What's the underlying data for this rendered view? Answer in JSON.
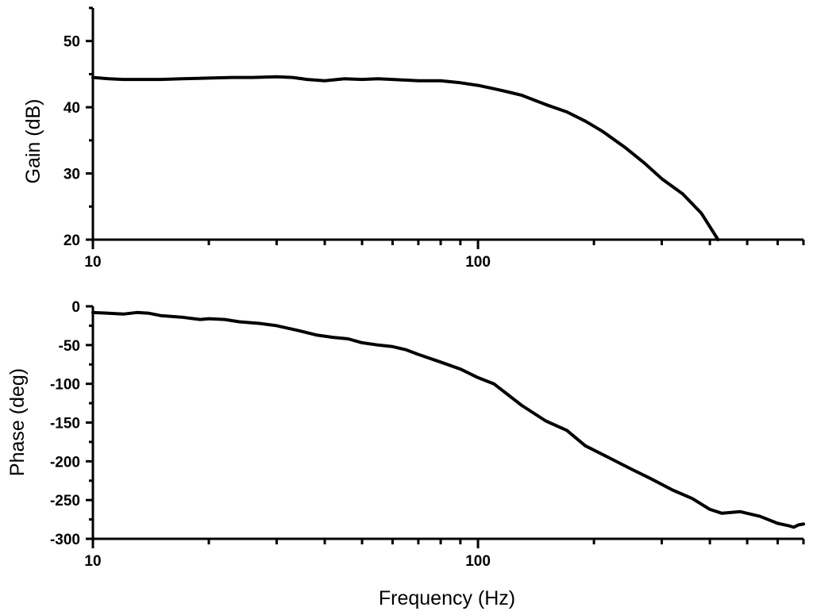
{
  "chart_data": [
    {
      "type": "line",
      "title": "",
      "xlabel": "",
      "ylabel": "Gain (dB)",
      "x_scale": "log",
      "xlim": [
        10,
        700
      ],
      "ylim": [
        20,
        55
      ],
      "x_ticks": [
        10,
        100
      ],
      "x_tick_labels": [
        "10",
        "100"
      ],
      "y_ticks": [
        20,
        30,
        40,
        50
      ],
      "y_tick_labels": [
        "20",
        "30",
        "40",
        "50"
      ],
      "grid": false,
      "line_color": "#000000",
      "series": [
        {
          "x": [
            10,
            11,
            12,
            13,
            14,
            15,
            17,
            20,
            23,
            26,
            30,
            33,
            36,
            40,
            45,
            50,
            55,
            60,
            70,
            80,
            90,
            100,
            110,
            120,
            130,
            150,
            170,
            190,
            210,
            240,
            270,
            300,
            340,
            380,
            420
          ],
          "y": [
            44.5,
            44.3,
            44.2,
            44.2,
            44.2,
            44.2,
            44.3,
            44.4,
            44.5,
            44.5,
            44.6,
            44.5,
            44.2,
            44.0,
            44.3,
            44.2,
            44.3,
            44.2,
            44.0,
            44.0,
            43.7,
            43.3,
            42.8,
            42.3,
            41.8,
            40.4,
            39.3,
            37.9,
            36.4,
            34.0,
            31.6,
            29.2,
            26.9,
            24.0,
            20.0
          ]
        }
      ]
    },
    {
      "type": "line",
      "title": "",
      "xlabel": "Frequency (Hz)",
      "ylabel": "Phase (deg)",
      "x_scale": "log",
      "xlim": [
        10,
        700
      ],
      "ylim": [
        -300,
        0
      ],
      "x_ticks": [
        10,
        100
      ],
      "x_tick_labels": [
        "10",
        "100"
      ],
      "y_ticks": [
        0,
        -50,
        -100,
        -150,
        -200,
        -250,
        -300
      ],
      "y_tick_labels": [
        "0",
        "-50",
        "-100",
        "-150",
        "-200",
        "-250",
        "-300"
      ],
      "grid": false,
      "line_color": "#000000",
      "series": [
        {
          "x": [
            10,
            11,
            12,
            13,
            14,
            15,
            17,
            19,
            20,
            22,
            24,
            27,
            30,
            34,
            38,
            42,
            46,
            50,
            55,
            60,
            65,
            70,
            80,
            90,
            100,
            110,
            130,
            150,
            170,
            190,
            220,
            250,
            280,
            320,
            360,
            400,
            430,
            480,
            540,
            600,
            640,
            660,
            680,
            700
          ],
          "y": [
            -8,
            -9,
            -10,
            -8,
            -9,
            -12,
            -14,
            -17,
            -16,
            -17,
            -20,
            -22,
            -25,
            -31,
            -37,
            -40,
            -42,
            -47,
            -50,
            -52,
            -56,
            -62,
            -72,
            -81,
            -92,
            -100,
            -128,
            -148,
            -160,
            -180,
            -196,
            -210,
            -222,
            -237,
            -248,
            -262,
            -267,
            -265,
            -271,
            -280,
            -283,
            -285,
            -282,
            -281
          ]
        }
      ]
    }
  ]
}
